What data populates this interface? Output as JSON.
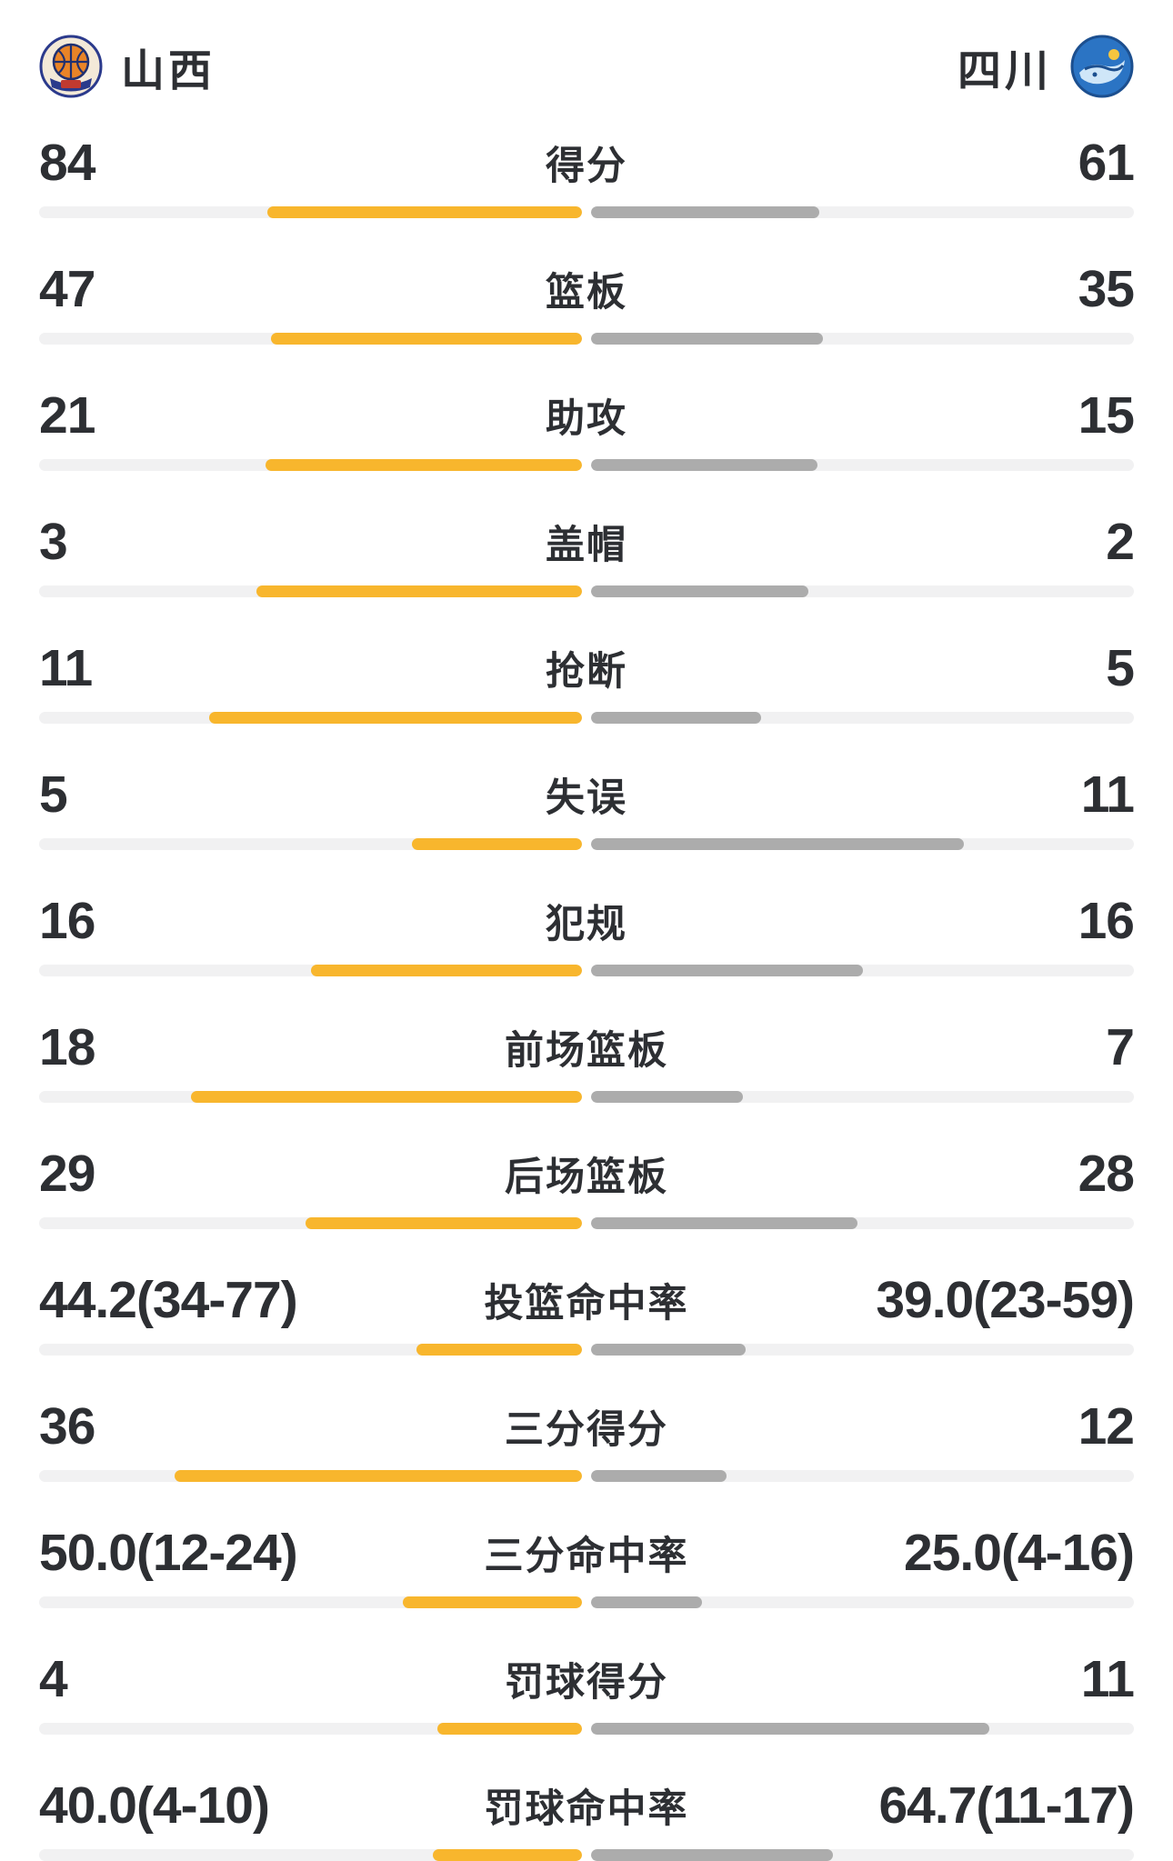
{
  "header": {
    "home_team": "山西",
    "away_team": "四川"
  },
  "colors": {
    "home_bar": "#F8B62D",
    "away_bar": "#ACACAC",
    "bar_track": "#F1F1F2",
    "text": "#2D2F33"
  },
  "chart_data": {
    "type": "bar",
    "orientation": "horizontal-diverging",
    "home_team": "山西",
    "away_team": "四川",
    "legend_position": "top",
    "rows": [
      {
        "label": "得分",
        "home": "84",
        "away": "61",
        "home_frac": 57.9,
        "away_frac": 42.1
      },
      {
        "label": "篮板",
        "home": "47",
        "away": "35",
        "home_frac": 57.3,
        "away_frac": 42.7
      },
      {
        "label": "助攻",
        "home": "21",
        "away": "15",
        "home_frac": 58.3,
        "away_frac": 41.7
      },
      {
        "label": "盖帽",
        "home": "3",
        "away": "2",
        "home_frac": 60.0,
        "away_frac": 40.0
      },
      {
        "label": "抢断",
        "home": "11",
        "away": "5",
        "home_frac": 68.7,
        "away_frac": 31.3
      },
      {
        "label": "失误",
        "home": "5",
        "away": "11",
        "home_frac": 31.3,
        "away_frac": 68.7
      },
      {
        "label": "犯规",
        "home": "16",
        "away": "16",
        "home_frac": 50.0,
        "away_frac": 50.0
      },
      {
        "label": "前场篮板",
        "home": "18",
        "away": "7",
        "home_frac": 72.0,
        "away_frac": 28.0
      },
      {
        "label": "后场篮板",
        "home": "29",
        "away": "28",
        "home_frac": 50.9,
        "away_frac": 49.1
      },
      {
        "label": "投篮命中率",
        "home": "44.2(34-77)",
        "away": "39.0(23-59)",
        "home_frac": 30.5,
        "away_frac": 28.5
      },
      {
        "label": "三分得分",
        "home": "36",
        "away": "12",
        "home_frac": 75.0,
        "away_frac": 25.0
      },
      {
        "label": "三分命中率",
        "home": "50.0(12-24)",
        "away": "25.0(4-16)",
        "home_frac": 33.0,
        "away_frac": 20.5
      },
      {
        "label": "罚球得分",
        "home": "4",
        "away": "11",
        "home_frac": 26.6,
        "away_frac": 73.4
      },
      {
        "label": "罚球命中率",
        "home": "40.0(4-10)",
        "away": "64.7(11-17)",
        "home_frac": 27.5,
        "away_frac": 44.5
      }
    ]
  }
}
